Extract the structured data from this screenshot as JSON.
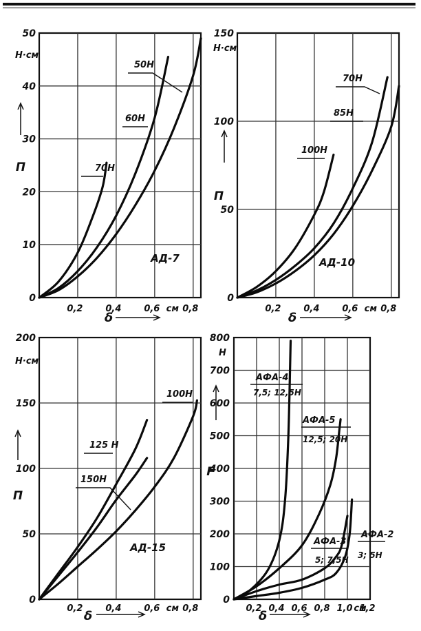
{
  "chart_data": [
    {
      "type": "line",
      "panel_label": "АД-7",
      "y_unit": "Н·см",
      "y_symbol": "П",
      "x_symbol": "δ",
      "x_unit": "см",
      "xlim": [
        0,
        0.84
      ],
      "ylim": [
        0,
        50
      ],
      "xticks": [
        {
          "v": 0.2,
          "t": "0,2"
        },
        {
          "v": 0.4,
          "t": "0,4"
        },
        {
          "v": 0.6,
          "t": "0,6"
        },
        {
          "v": 0.8,
          "t": "0,8"
        }
      ],
      "yticks": [
        {
          "v": 0,
          "t": "0"
        },
        {
          "v": 10,
          "t": "10"
        },
        {
          "v": 20,
          "t": "20"
        },
        {
          "v": 30,
          "t": "30"
        },
        {
          "v": 40,
          "t": "40"
        },
        {
          "v": 50,
          "t": "50"
        }
      ],
      "grid": true,
      "series": [
        {
          "name": "70Н",
          "points": [
            [
              0,
              0
            ],
            [
              0.1,
              3
            ],
            [
              0.2,
              8.5
            ],
            [
              0.28,
              15.5
            ],
            [
              0.33,
              21
            ],
            [
              0.35,
              25.5
            ]
          ]
        },
        {
          "name": "50Н",
          "points": [
            [
              0,
              0
            ],
            [
              0.1,
              1.8
            ],
            [
              0.2,
              5
            ],
            [
              0.3,
              9.5
            ],
            [
              0.4,
              15.5
            ],
            [
              0.5,
              23.5
            ],
            [
              0.6,
              34
            ],
            [
              0.67,
              45.5
            ]
          ]
        },
        {
          "name": "60Н",
          "points": [
            [
              0,
              0
            ],
            [
              0.1,
              1.4
            ],
            [
              0.2,
              4
            ],
            [
              0.3,
              7.5
            ],
            [
              0.4,
              12
            ],
            [
              0.5,
              17.5
            ],
            [
              0.6,
              24
            ],
            [
              0.7,
              32
            ],
            [
              0.8,
              42
            ],
            [
              0.84,
              49
            ]
          ]
        }
      ]
    },
    {
      "type": "line",
      "panel_label": "АД-10",
      "y_unit": "Н·см",
      "y_symbol": "П",
      "x_symbol": "δ",
      "x_unit": "см",
      "xlim": [
        0,
        0.84
      ],
      "ylim": [
        0,
        150
      ],
      "xticks": [
        {
          "v": 0.2,
          "t": "0,2"
        },
        {
          "v": 0.4,
          "t": "0,4"
        },
        {
          "v": 0.6,
          "t": "0,6"
        },
        {
          "v": 0.8,
          "t": "0,8"
        }
      ],
      "yticks": [
        {
          "v": 0,
          "t": "0"
        },
        {
          "v": 50,
          "t": "50"
        },
        {
          "v": 100,
          "t": "100"
        },
        {
          "v": 150,
          "t": "150"
        }
      ],
      "grid": true,
      "series": [
        {
          "name": "100Н",
          "points": [
            [
              0,
              0
            ],
            [
              0.1,
              6
            ],
            [
              0.2,
              15
            ],
            [
              0.3,
              28
            ],
            [
              0.4,
              47
            ],
            [
              0.45,
              60
            ],
            [
              0.5,
              81
            ]
          ]
        },
        {
          "name": "70Н",
          "points": [
            [
              0,
              0
            ],
            [
              0.1,
              4
            ],
            [
              0.2,
              10
            ],
            [
              0.3,
              18
            ],
            [
              0.4,
              28
            ],
            [
              0.5,
              42
            ],
            [
              0.6,
              62
            ],
            [
              0.7,
              88
            ],
            [
              0.78,
              125
            ]
          ]
        },
        {
          "name": "85Н",
          "points": [
            [
              0,
              0
            ],
            [
              0.1,
              3
            ],
            [
              0.2,
              8
            ],
            [
              0.3,
              15
            ],
            [
              0.4,
              24
            ],
            [
              0.5,
              36
            ],
            [
              0.6,
              52
            ],
            [
              0.7,
              72
            ],
            [
              0.8,
              97
            ],
            [
              0.84,
              120
            ]
          ]
        }
      ]
    },
    {
      "type": "line",
      "panel_label": "АД-15",
      "y_unit": "Н·см",
      "y_symbol": "П",
      "x_symbol": "δ",
      "x_unit": "см",
      "xlim": [
        0,
        0.84
      ],
      "ylim": [
        0,
        200
      ],
      "xticks": [
        {
          "v": 0.2,
          "t": "0,2"
        },
        {
          "v": 0.4,
          "t": "0,4"
        },
        {
          "v": 0.6,
          "t": "0,6"
        },
        {
          "v": 0.8,
          "t": "0,8"
        }
      ],
      "yticks": [
        {
          "v": 0,
          "t": "0"
        },
        {
          "v": 50,
          "t": "50"
        },
        {
          "v": 100,
          "t": "100"
        },
        {
          "v": 150,
          "t": "150"
        },
        {
          "v": 200,
          "t": "200"
        }
      ],
      "grid": true,
      "series": [
        {
          "name": "125 Н",
          "points": [
            [
              0,
              0
            ],
            [
              0.1,
              20
            ],
            [
              0.2,
              40
            ],
            [
              0.3,
              62
            ],
            [
              0.4,
              88
            ],
            [
              0.5,
              115
            ],
            [
              0.56,
              137
            ]
          ]
        },
        {
          "name": "150Н",
          "points": [
            [
              0,
              0
            ],
            [
              0.1,
              18
            ],
            [
              0.2,
              36
            ],
            [
              0.3,
              55
            ],
            [
              0.4,
              76
            ],
            [
              0.5,
              95
            ],
            [
              0.56,
              108
            ]
          ]
        },
        {
          "name": "100Н",
          "points": [
            [
              0,
              0
            ],
            [
              0.1,
              12
            ],
            [
              0.2,
              25
            ],
            [
              0.3,
              38
            ],
            [
              0.4,
              52
            ],
            [
              0.5,
              68
            ],
            [
              0.6,
              86
            ],
            [
              0.7,
              108
            ],
            [
              0.8,
              140
            ],
            [
              0.82,
              152
            ]
          ]
        }
      ]
    },
    {
      "type": "line",
      "panel_label": "",
      "y_unit": "Н",
      "y_symbol": "F",
      "x_symbol": "δ",
      "x_unit": "см",
      "xlim": [
        0,
        1.2
      ],
      "ylim": [
        0,
        800
      ],
      "xticks": [
        {
          "v": 0.2,
          "t": "0,2"
        },
        {
          "v": 0.4,
          "t": "0,4"
        },
        {
          "v": 0.6,
          "t": "0,6"
        },
        {
          "v": 0.8,
          "t": "0,8"
        },
        {
          "v": 1.0,
          "t": "1,0"
        },
        {
          "v": 1.2,
          "t": "1,2"
        }
      ],
      "yticks": [
        {
          "v": 0,
          "t": "0"
        },
        {
          "v": 100,
          "t": "100"
        },
        {
          "v": 200,
          "t": "200"
        },
        {
          "v": 300,
          "t": "300"
        },
        {
          "v": 400,
          "t": "400"
        },
        {
          "v": 500,
          "t": "500"
        },
        {
          "v": 600,
          "t": "600"
        },
        {
          "v": 700,
          "t": "700"
        },
        {
          "v": 800,
          "t": "800"
        }
      ],
      "grid": true,
      "series": [
        {
          "name": "АФА-4",
          "subtitle": "7,5; 12,5Н",
          "points": [
            [
              0,
              0
            ],
            [
              0.15,
              30
            ],
            [
              0.3,
              90
            ],
            [
              0.4,
              180
            ],
            [
              0.45,
              300
            ],
            [
              0.48,
              500
            ],
            [
              0.5,
              790
            ]
          ]
        },
        {
          "name": "АФА-5",
          "subtitle": "12,5; 20Н",
          "points": [
            [
              0,
              0
            ],
            [
              0.2,
              40
            ],
            [
              0.4,
              95
            ],
            [
              0.6,
              165
            ],
            [
              0.75,
              260
            ],
            [
              0.85,
              350
            ],
            [
              0.9,
              430
            ],
            [
              0.93,
              520
            ],
            [
              0.94,
              550
            ]
          ]
        },
        {
          "name": "АФА-3",
          "subtitle": "5; 7,5Н",
          "points": [
            [
              0,
              0
            ],
            [
              0.2,
              25
            ],
            [
              0.4,
              45
            ],
            [
              0.6,
              60
            ],
            [
              0.8,
              95
            ],
            [
              0.9,
              130
            ],
            [
              0.95,
              165
            ],
            [
              1.0,
              255
            ]
          ]
        },
        {
          "name": "АФА-2",
          "subtitle": "3; 5Н",
          "points": [
            [
              0,
              0
            ],
            [
              0.2,
              10
            ],
            [
              0.4,
              20
            ],
            [
              0.6,
              35
            ],
            [
              0.8,
              60
            ],
            [
              0.9,
              80
            ],
            [
              0.98,
              130
            ],
            [
              1.02,
              200
            ],
            [
              1.04,
              305
            ]
          ]
        }
      ]
    }
  ]
}
